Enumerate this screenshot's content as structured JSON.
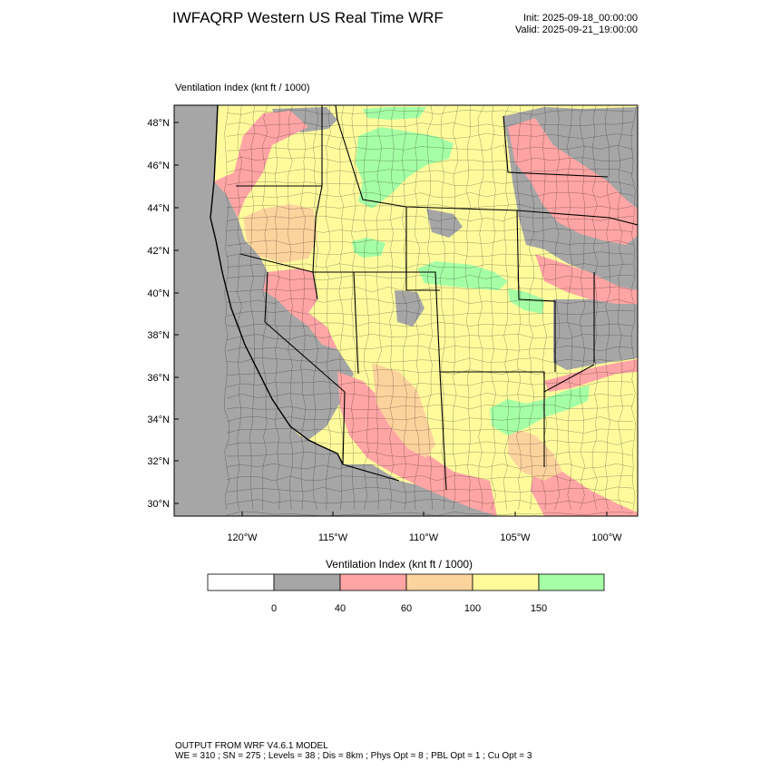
{
  "header": {
    "title": "IWFAQRP Western US Real Time WRF",
    "init": "Init: 2025-09-18_00:00:00",
    "valid": "Valid: 2025-09-21_19:00:00"
  },
  "map": {
    "field_label": "Ventilation Index   (knt ft / 1000)",
    "lat_labels": [
      "48°N",
      "46°N",
      "44°N",
      "42°N",
      "40°N",
      "38°N",
      "36°N",
      "34°N",
      "32°N",
      "30°N"
    ],
    "lon_labels": [
      "120°W",
      "115°W",
      "110°W",
      "105°W",
      "100°W"
    ],
    "ocean_color": "#a6a6a6"
  },
  "colorbar": {
    "title": "Ventilation Index   (knt ft / 1000)",
    "ticks": [
      "0",
      "40",
      "60",
      "100",
      "150"
    ],
    "bins": [
      {
        "color": "#ffffff"
      },
      {
        "color": "#a6a6a6"
      },
      {
        "color": "#ffa5a5"
      },
      {
        "color": "#fdd39d"
      },
      {
        "color": "#fffb9d"
      },
      {
        "color": "#a5ffa5"
      }
    ]
  },
  "footer": {
    "line1": "OUTPUT FROM WRF V4.6.1 MODEL",
    "line2": "WE = 310 ; SN = 275 ; Levels = 38 ; Dis = 8km ; Phys Opt = 8 ; PBL Opt = 1 ; Cu Opt = 3"
  }
}
